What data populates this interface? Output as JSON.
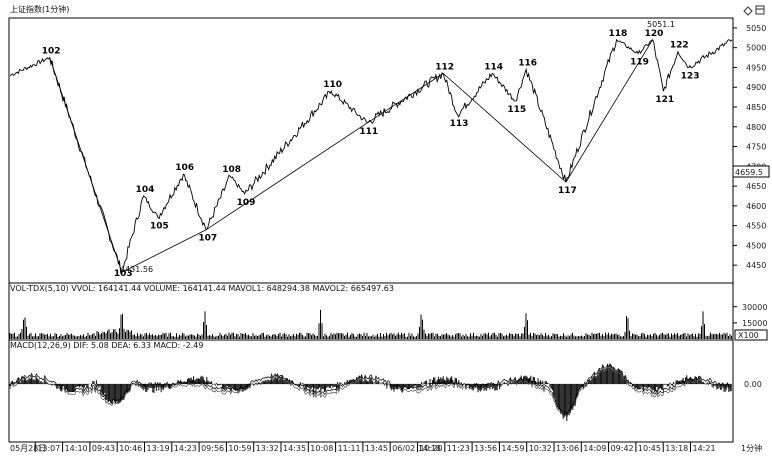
{
  "title": "上证指数(1分钟)",
  "header_icons": [
    "diamond-icon",
    "window-icon"
  ],
  "price_panel": {
    "y_ticks": [
      5050,
      5000,
      4950,
      4900,
      4850,
      4800,
      4750,
      4700,
      4650,
      4600,
      4550,
      4500,
      4450
    ],
    "ylim": [
      4410,
      5070
    ],
    "current_value_label": "4659.5",
    "low_label": "4431.56",
    "high_label": "5051.1",
    "wave_points": [
      {
        "label": "102",
        "t": 0.055,
        "v": 4975
      },
      {
        "label": "103",
        "t": 0.155,
        "v": 4432
      },
      {
        "label": "104",
        "t": 0.185,
        "v": 4625
      },
      {
        "label": "105",
        "t": 0.205,
        "v": 4570
      },
      {
        "label": "106",
        "t": 0.24,
        "v": 4680
      },
      {
        "label": "107",
        "t": 0.272,
        "v": 4540
      },
      {
        "label": "108",
        "t": 0.305,
        "v": 4675
      },
      {
        "label": "109",
        "t": 0.325,
        "v": 4630
      },
      {
        "label": "110",
        "t": 0.445,
        "v": 4890
      },
      {
        "label": "111",
        "t": 0.495,
        "v": 4810
      },
      {
        "label": "112",
        "t": 0.6,
        "v": 4935
      },
      {
        "label": "113",
        "t": 0.62,
        "v": 4830
      },
      {
        "label": "114",
        "t": 0.668,
        "v": 4935
      },
      {
        "label": "115",
        "t": 0.7,
        "v": 4865
      },
      {
        "label": "116",
        "t": 0.715,
        "v": 4945
      },
      {
        "label": "117",
        "t": 0.77,
        "v": 4660
      },
      {
        "label": "118",
        "t": 0.84,
        "v": 5020
      },
      {
        "label": "119",
        "t": 0.87,
        "v": 4985
      },
      {
        "label": "120",
        "t": 0.89,
        "v": 5020
      },
      {
        "label": "121",
        "t": 0.905,
        "v": 4890
      },
      {
        "label": "122",
        "t": 0.925,
        "v": 4990
      },
      {
        "label": "123",
        "t": 0.94,
        "v": 4950
      }
    ],
    "trend_sequence": [
      "102",
      "103",
      "107",
      "111",
      "112",
      "117",
      "120"
    ]
  },
  "volume_panel": {
    "legend": "VOL-TDX(5,10) VVOL: 164141.44  VOLUME: 164141.44  MAVOL1: 648294.38  MAVOL2: 665497.63",
    "y_ticks": [
      "30000",
      "15000"
    ],
    "unit": "X100",
    "ylim": [
      0,
      40000
    ]
  },
  "macd_panel": {
    "legend": "MACD(12,26,9)  DIF: 5.08  DEA: 6.33  MACD: -2.49",
    "zero_label": "0.00"
  },
  "time_axis": {
    "labels": [
      "05月28日",
      "13:07",
      "14:10",
      "09:43",
      "10:46",
      "13:19",
      "14:23",
      "09:56",
      "10:59",
      "13:32",
      "14:35",
      "10:08",
      "11:11",
      "13:45",
      "06/02 14:18",
      "10:20",
      "11:23",
      "13:56",
      "14:59",
      "10:32",
      "13:06",
      "14:09",
      "09:42",
      "10:45",
      "13:18",
      "14:21",
      "1分钟"
    ]
  }
}
